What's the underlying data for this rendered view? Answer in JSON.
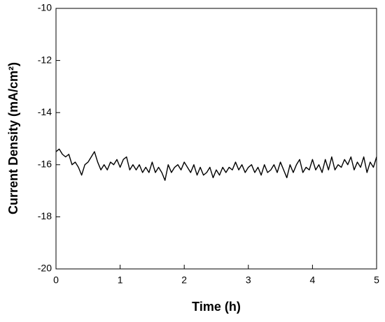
{
  "chart_data": {
    "type": "line",
    "xlabel": "Time (h)",
    "ylabel": "Current Density (mA/cm²)",
    "x": [
      0,
      0.05,
      0.1,
      0.15,
      0.2,
      0.25,
      0.3,
      0.35,
      0.4,
      0.45,
      0.5,
      0.55,
      0.6,
      0.65,
      0.7,
      0.75,
      0.8,
      0.85,
      0.9,
      0.95,
      1,
      1.05,
      1.1,
      1.15,
      1.2,
      1.25,
      1.3,
      1.35,
      1.4,
      1.45,
      1.5,
      1.55,
      1.6,
      1.65,
      1.7,
      1.75,
      1.8,
      1.85,
      1.9,
      1.95,
      2,
      2.05,
      2.1,
      2.15,
      2.2,
      2.25,
      2.3,
      2.35,
      2.4,
      2.45,
      2.5,
      2.55,
      2.6,
      2.65,
      2.7,
      2.75,
      2.8,
      2.85,
      2.9,
      2.95,
      3,
      3.05,
      3.1,
      3.15,
      3.2,
      3.25,
      3.3,
      3.35,
      3.4,
      3.45,
      3.5,
      3.55,
      3.6,
      3.65,
      3.7,
      3.75,
      3.8,
      3.85,
      3.9,
      3.95,
      4,
      4.05,
      4.1,
      4.15,
      4.2,
      4.25,
      4.3,
      4.35,
      4.4,
      4.45,
      4.5,
      4.55,
      4.6,
      4.65,
      4.7,
      4.75,
      4.8,
      4.85,
      4.9,
      4.95,
      5
    ],
    "series": [
      {
        "color": "#000000",
        "values": [
          -15.5,
          -15.4,
          -15.6,
          -15.7,
          -15.6,
          -16.0,
          -15.9,
          -16.1,
          -16.4,
          -16.0,
          -15.9,
          -15.7,
          -15.5,
          -15.9,
          -16.2,
          -16.0,
          -16.2,
          -15.9,
          -16.0,
          -15.8,
          -16.1,
          -15.8,
          -15.7,
          -16.2,
          -16.0,
          -16.2,
          -16.0,
          -16.3,
          -16.1,
          -16.3,
          -15.9,
          -16.3,
          -16.1,
          -16.3,
          -16.6,
          -16.0,
          -16.3,
          -16.1,
          -16.0,
          -16.2,
          -15.9,
          -16.1,
          -16.3,
          -16.0,
          -16.4,
          -16.1,
          -16.4,
          -16.3,
          -16.1,
          -16.5,
          -16.2,
          -16.4,
          -16.1,
          -16.3,
          -16.1,
          -16.2,
          -15.9,
          -16.2,
          -16.0,
          -16.3,
          -16.1,
          -16.0,
          -16.3,
          -16.1,
          -16.4,
          -16.0,
          -16.3,
          -16.2,
          -16.0,
          -16.3,
          -15.9,
          -16.2,
          -16.5,
          -16.0,
          -16.3,
          -16.0,
          -15.8,
          -16.3,
          -16.1,
          -16.2,
          -15.8,
          -16.2,
          -16.0,
          -16.3,
          -15.8,
          -16.2,
          -15.7,
          -16.2,
          -16.0,
          -16.1,
          -15.8,
          -16.0,
          -15.7,
          -16.2,
          -15.9,
          -16.1,
          -15.7,
          -16.3,
          -15.9,
          -16.1,
          -15.7
        ]
      }
    ],
    "xlim": [
      0,
      5
    ],
    "xticks": [
      0,
      1,
      2,
      3,
      4,
      5
    ],
    "ylim": [
      -20,
      -10
    ],
    "yticks": [
      -20,
      -18,
      -16,
      -14,
      -12,
      -10
    ],
    "grid": false
  }
}
